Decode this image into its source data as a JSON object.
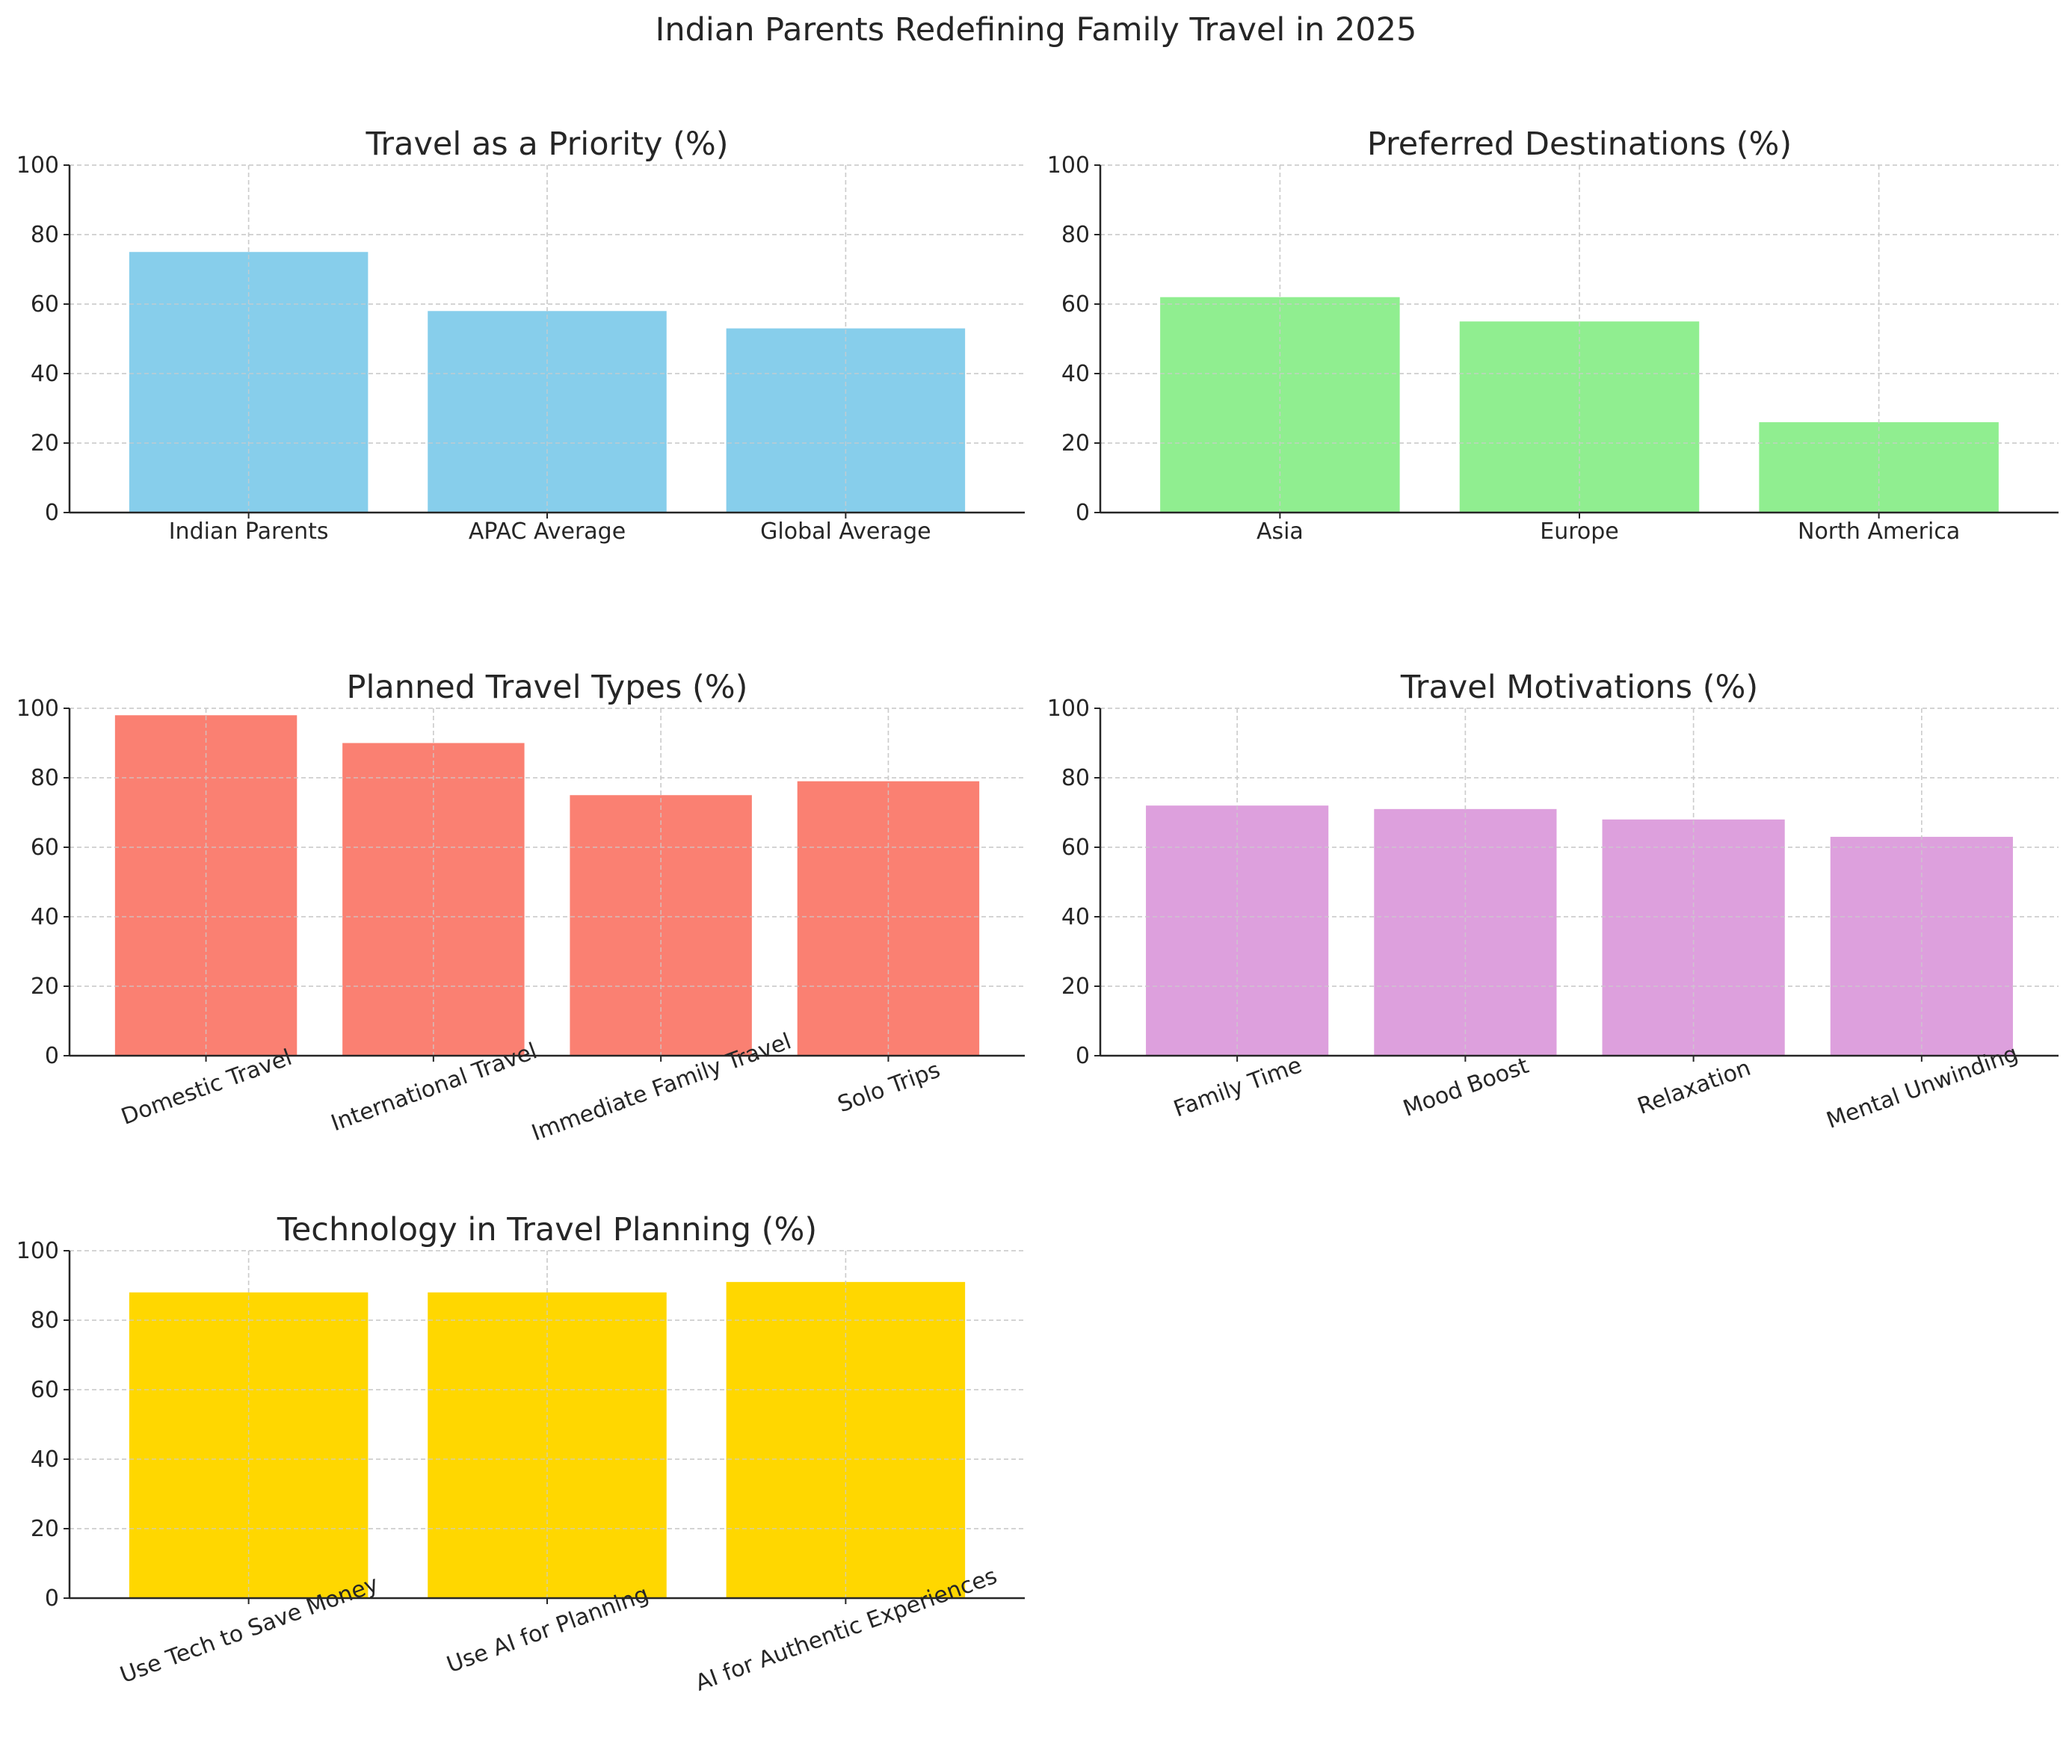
{
  "figure": {
    "title": "Indian Parents Redefining Family Travel in 2025"
  },
  "chart_data": [
    {
      "type": "bar",
      "title": "Travel as a Priority (%)",
      "categories": [
        "Indian Parents",
        "APAC Average",
        "Global Average"
      ],
      "values": [
        75,
        58,
        53
      ],
      "color": "#87CEEB",
      "ylim": [
        0,
        100
      ],
      "yticks": [
        "0",
        "20",
        "40",
        "60",
        "80",
        "100"
      ],
      "grid": true,
      "xlabel": "",
      "ylabel": ""
    },
    {
      "type": "bar",
      "title": "Preferred Destinations (%)",
      "categories": [
        "Asia",
        "Europe",
        "North America"
      ],
      "values": [
        62,
        55,
        26
      ],
      "color": "#90EE90",
      "ylim": [
        0,
        100
      ],
      "yticks": [
        "0",
        "20",
        "40",
        "60",
        "80",
        "100"
      ],
      "grid": true,
      "xlabel": "",
      "ylabel": ""
    },
    {
      "type": "bar",
      "title": "Planned Travel Types (%)",
      "categories": [
        "Domestic Travel",
        "International Travel",
        "Immediate Family Travel",
        "Solo Trips"
      ],
      "values": [
        98,
        90,
        75,
        79
      ],
      "color": "#FA8072",
      "ylim": [
        0,
        100
      ],
      "yticks": [
        "0",
        "20",
        "40",
        "60",
        "80",
        "100"
      ],
      "grid": true,
      "xlabel": "",
      "ylabel": ""
    },
    {
      "type": "bar",
      "title": "Travel Motivations (%)",
      "categories": [
        "Family Time",
        "Mood Boost",
        "Relaxation",
        "Mental Unwinding"
      ],
      "values": [
        72,
        71,
        68,
        63
      ],
      "color": "#DDA0DD",
      "ylim": [
        0,
        100
      ],
      "yticks": [
        "0",
        "20",
        "40",
        "60",
        "80",
        "100"
      ],
      "grid": true,
      "xlabel": "",
      "ylabel": ""
    },
    {
      "type": "bar",
      "title": "Technology in Travel Planning (%)",
      "categories": [
        "Use Tech to Save Money",
        "Use AI for Planning",
        "AI for Authentic Experiences"
      ],
      "values": [
        88,
        88,
        91
      ],
      "color": "#FFD700",
      "ylim": [
        0,
        100
      ],
      "yticks": [
        "0",
        "20",
        "40",
        "60",
        "80",
        "100"
      ],
      "grid": true,
      "xlabel": "",
      "ylabel": ""
    }
  ]
}
